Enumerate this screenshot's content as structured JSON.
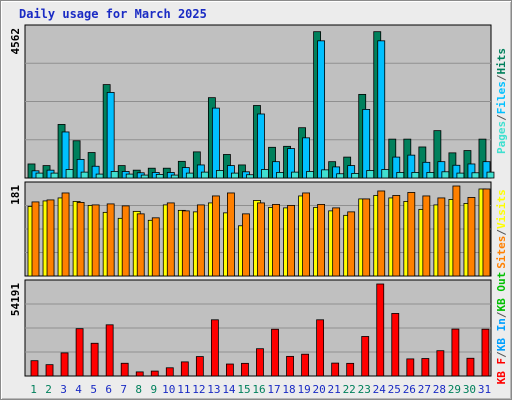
{
  "title": "Daily usage for March 2025",
  "colors": {
    "hits": "#00805c",
    "files": "#00c0ff",
    "pages": "#40e0d0",
    "visits": "#ffff00",
    "sites": "#ff8000",
    "kbin": "#00a0ff",
    "kbout": "#00c000",
    "kb": "#ff0000",
    "plot_bg": "#c0c0c0",
    "slash": "#555555",
    "day_normal": "#1a2bc4",
    "day_weekend": "#00805c"
  },
  "days": [
    "1",
    "2",
    "3",
    "4",
    "5",
    "6",
    "7",
    "8",
    "9",
    "10",
    "11",
    "12",
    "13",
    "14",
    "15",
    "16",
    "17",
    "18",
    "19",
    "20",
    "21",
    "22",
    "23",
    "24",
    "25",
    "26",
    "27",
    "28",
    "29",
    "30",
    "31"
  ],
  "weekend_days": [
    1,
    2,
    8,
    9,
    15,
    16,
    22,
    23,
    29,
    30
  ],
  "chart_data": [
    {
      "type": "bar",
      "ymax_label": "4562",
      "ylim": [
        0,
        4562
      ],
      "legend": [
        "Pages",
        "Files",
        "Hits"
      ],
      "series": [
        {
          "name": "Hits",
          "values": [
            430,
            380,
            1640,
            1140,
            780,
            2860,
            380,
            240,
            300,
            300,
            510,
            800,
            2460,
            720,
            400,
            2220,
            940,
            970,
            1540,
            4480,
            500,
            640,
            2560,
            4480,
            1190,
            1190,
            950,
            1450,
            770,
            840,
            1190
          ]
        },
        {
          "name": "Files",
          "values": [
            220,
            240,
            1410,
            570,
            360,
            2620,
            200,
            160,
            170,
            170,
            320,
            400,
            2140,
            380,
            190,
            1960,
            500,
            900,
            1230,
            4200,
            340,
            380,
            2100,
            4200,
            640,
            700,
            480,
            500,
            390,
            430,
            500
          ]
        },
        {
          "name": "Pages",
          "values": [
            150,
            150,
            260,
            180,
            120,
            200,
            120,
            90,
            110,
            90,
            150,
            180,
            230,
            150,
            100,
            260,
            170,
            180,
            200,
            250,
            130,
            140,
            230,
            260,
            170,
            170,
            170,
            190,
            150,
            160,
            180
          ]
        }
      ]
    },
    {
      "type": "bar",
      "ymax_label": "181",
      "ylim": [
        0,
        181
      ],
      "legend": [
        "Sites",
        "Visits"
      ],
      "series": [
        {
          "name": "Visits",
          "values": [
            140,
            151,
            157,
            150,
            142,
            128,
            116,
            130,
            112,
            143,
            132,
            129,
            147,
            127,
            101,
            152,
            138,
            137,
            161,
            138,
            131,
            122,
            155,
            162,
            157,
            150,
            134,
            143,
            154,
            146,
            175
          ]
        },
        {
          "name": "Sites",
          "values": [
            149,
            153,
            167,
            148,
            143,
            145,
            141,
            125,
            117,
            147,
            131,
            143,
            161,
            167,
            125,
            147,
            144,
            142,
            167,
            144,
            137,
            129,
            155,
            171,
            162,
            168,
            161,
            157,
            181,
            158,
            175
          ]
        }
      ]
    },
    {
      "type": "bar",
      "ymax_label": "54191",
      "ylim": [
        0,
        54191
      ],
      "legend": [
        "KB F",
        "KB In",
        "KB Out"
      ],
      "series": [
        {
          "name": "KB F",
          "values": [
            9020,
            6680,
            13600,
            27860,
            19280,
            30150,
            7500,
            2420,
            2900,
            4840,
            8320,
            11450,
            33110,
            7050,
            7460,
            16080,
            27540,
            11560,
            12840,
            33110,
            7600,
            7460,
            23280,
            54191,
            36850,
            10080,
            10300,
            14900,
            27630,
            10450,
            27560
          ]
        }
      ]
    }
  ]
}
